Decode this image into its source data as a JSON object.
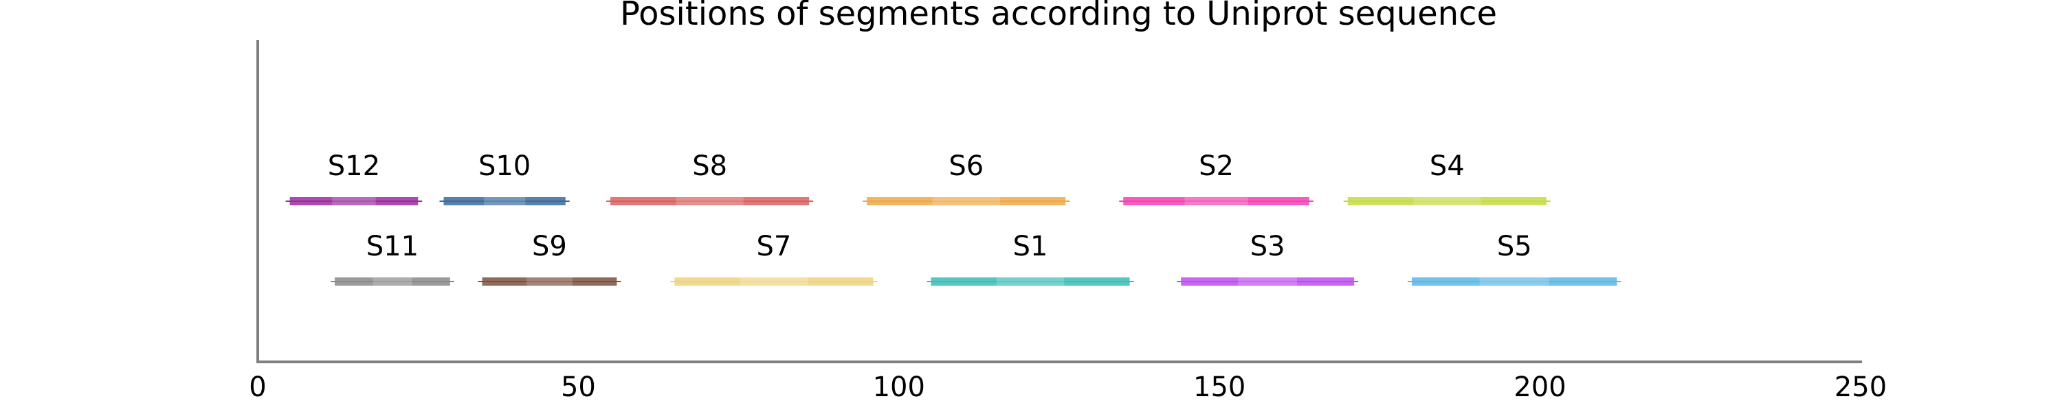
{
  "chart_data": {
    "type": "bar",
    "title": "Positions of segments according to Uniprot sequence",
    "xlabel": "",
    "ylabel": "",
    "xlim": [
      0,
      250
    ],
    "xticks": [
      0,
      50,
      100,
      150,
      200,
      250
    ],
    "grid": false,
    "legend": "none",
    "rows": 2,
    "segments": [
      {
        "name": "S12",
        "start": 5,
        "end": 25,
        "row": 1,
        "color": "#9b2c9f"
      },
      {
        "name": "S10",
        "start": 29,
        "end": 48,
        "row": 1,
        "color": "#3a6a9c"
      },
      {
        "name": "S8",
        "start": 55,
        "end": 86,
        "row": 1,
        "color": "#d9605e"
      },
      {
        "name": "S6",
        "start": 95,
        "end": 126,
        "row": 1,
        "color": "#f0a845"
      },
      {
        "name": "S2",
        "start": 135,
        "end": 164,
        "row": 1,
        "color": "#f53fb4"
      },
      {
        "name": "S4",
        "start": 170,
        "end": 201,
        "row": 1,
        "color": "#c5db43"
      },
      {
        "name": "S11",
        "start": 12,
        "end": 30,
        "row": 2,
        "color": "#898989"
      },
      {
        "name": "S9",
        "start": 35,
        "end": 56,
        "row": 2,
        "color": "#7d5040"
      },
      {
        "name": "S7",
        "start": 65,
        "end": 96,
        "row": 2,
        "color": "#f0d27e"
      },
      {
        "name": "S1",
        "start": 105,
        "end": 136,
        "row": 2,
        "color": "#38bdb5"
      },
      {
        "name": "S3",
        "start": 144,
        "end": 171,
        "row": 2,
        "color": "#bd4bf0"
      },
      {
        "name": "S5",
        "start": 180,
        "end": 212,
        "row": 2,
        "color": "#59b6e6"
      }
    ]
  }
}
